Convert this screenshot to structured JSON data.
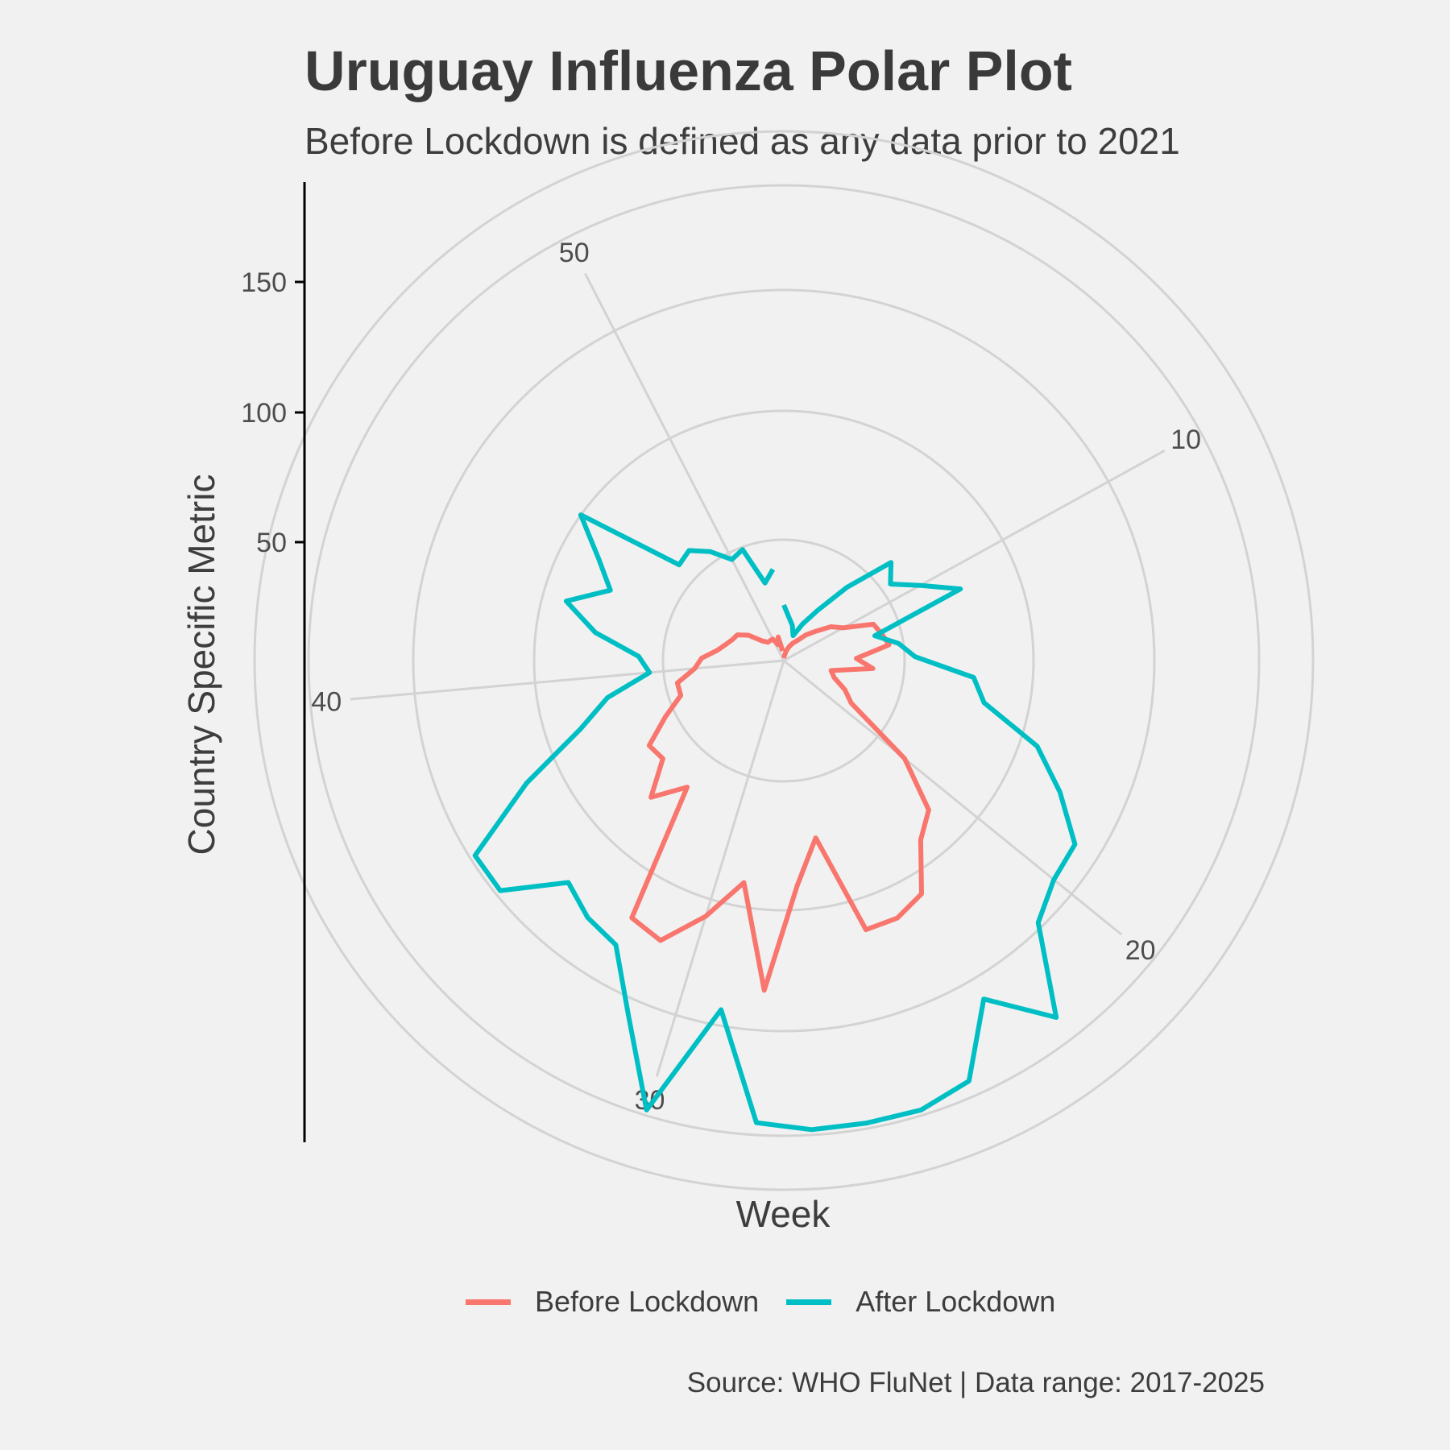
{
  "chart_data": {
    "type": "line",
    "coordinate_system": "polar",
    "title": "Uruguay Influenza Polar Plot",
    "subtitle": "Before Lockdown is defined as any data prior to 2021",
    "xlabel": "Week",
    "ylabel": "Country Specific Metric",
    "caption": "Source: WHO FluNet | Data range: 2017-2025",
    "x_range": [
      1,
      53
    ],
    "x_ticks": [
      10,
      20,
      30,
      40,
      50
    ],
    "y_ticks": [
      50,
      100,
      150
    ],
    "y_range": [
      0,
      167
    ],
    "grid": true,
    "legend_position": "bottom",
    "series": [
      {
        "name": "Before Lockdown",
        "color": "#f8766d",
        "x": [
          1,
          2,
          3,
          4,
          5,
          6,
          7,
          8,
          9,
          10,
          11,
          12,
          13,
          14,
          15,
          16,
          17,
          18,
          19,
          20,
          21,
          22,
          23,
          24,
          25,
          26,
          27,
          28,
          29,
          30,
          31,
          32,
          33,
          34,
          35,
          36,
          37,
          38,
          39,
          40,
          41,
          42,
          43,
          44,
          45,
          46,
          47,
          48,
          49,
          50,
          51,
          52,
          53
        ],
        "values": [
          1,
          2,
          4,
          6,
          8,
          10,
          14,
          18,
          24,
          28,
          40,
          42,
          44,
          30,
          37,
          20,
          22,
          28,
          33,
          60,
          75,
          80,
          93,
          96,
          96,
          67,
          80,
          110,
          80,
          92,
          103,
          101,
          61,
          70,
          60,
          61,
          53,
          45,
          45,
          37,
          34,
          28,
          25,
          23,
          22,
          18,
          12,
          10,
          10,
          10,
          7,
          10,
          4
        ]
      },
      {
        "name": "After Lockdown",
        "color": "#00bfc4",
        "x": [
          1,
          2,
          3,
          4,
          5,
          6,
          7,
          8,
          9,
          10,
          11,
          12,
          13,
          14,
          15,
          16,
          17,
          18,
          19,
          20,
          21,
          22,
          23,
          24,
          25,
          26,
          27,
          28,
          29,
          30,
          31,
          32,
          33,
          34,
          35,
          36,
          37,
          38,
          39,
          40,
          41,
          42,
          43,
          44,
          45,
          46,
          47,
          48,
          49,
          50,
          51,
          52,
          53
        ],
        "values": [
          23,
          18,
          15,
          11,
          17,
          25,
          40,
          57,
          53,
          60,
          70,
          39,
          48,
          53,
          70,
          74,
          92,
          103,
          114,
          115,
          120,
          144,
          128,
          147,
          150,
          150,
          150,
          148,
          117,
          150,
          126,
          110,
          108,
          104,
          120,
          120,
          97,
          77,
          67,
          54,
          57,
          70,
          80,
          69,
          76,
          87,
          56,
          57,
          53,
          47,
          49,
          33,
          38
        ]
      }
    ]
  }
}
